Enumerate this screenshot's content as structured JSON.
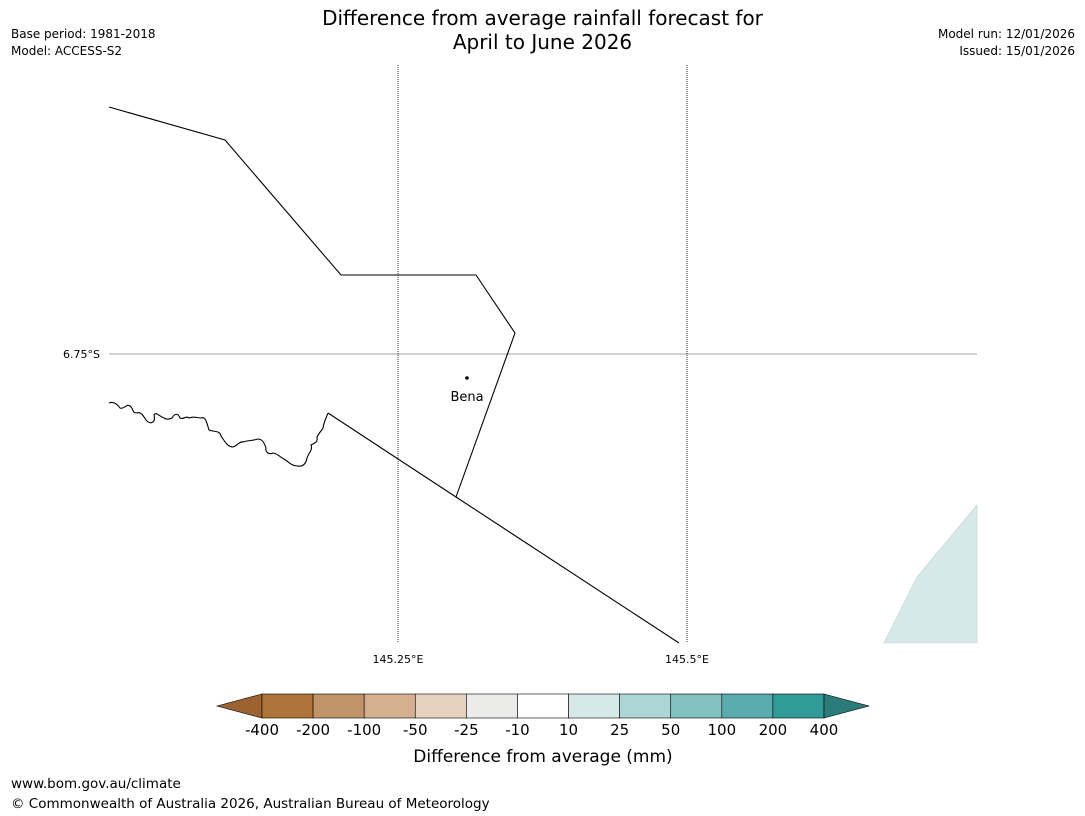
{
  "title": {
    "line1": "Difference from average rainfall forecast for",
    "line2": "April to June 2026"
  },
  "meta": {
    "base_period": "Base period: 1981-2018",
    "model": "Model: ACCESS-S2",
    "model_run": "Model run: 12/01/2026",
    "issued": "Issued: 15/01/2026"
  },
  "map": {
    "lat_labels": [
      "6.75°S"
    ],
    "lon_labels": [
      "145.25°E",
      "145.5°E"
    ],
    "places": [
      {
        "name": "Bena"
      }
    ],
    "colors": {
      "border": "#000000",
      "grid": "#000000",
      "shade": "#d6e9e8"
    }
  },
  "legend": {
    "title": "Difference from average (mm)",
    "ticks": [
      "-400",
      "-200",
      "-100",
      "-50",
      "-25",
      "-10",
      "10",
      "25",
      "50",
      "100",
      "200",
      "400"
    ],
    "colors": [
      "#9c6330",
      "#ad733a",
      "#c19368",
      "#d4b090",
      "#e6d1bf",
      "#ebebe9",
      "#ffffff",
      "#d6e9e8",
      "#acd6d5",
      "#83c1bf",
      "#59acab",
      "#319b99",
      "#2c7b7a"
    ]
  },
  "footer": {
    "url": "www.bom.gov.au/climate",
    "copyright": "© Commonwealth of Australia 2026, Australian Bureau of Meteorology"
  }
}
